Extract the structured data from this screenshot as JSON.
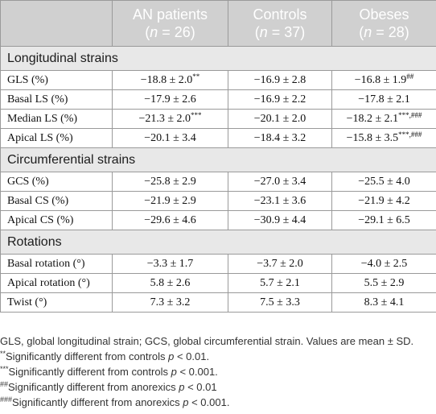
{
  "header": {
    "columns": [
      {
        "name": "AN patients",
        "n": "26"
      },
      {
        "name": "Controls",
        "n": "37"
      },
      {
        "name": "Obeses",
        "n": "28"
      }
    ],
    "n_prefix": "(",
    "n_var": "n",
    "n_eq": " = ",
    "n_suffix": ")"
  },
  "sections": [
    {
      "title": "Longitudinal strains",
      "rows": [
        {
          "label": "GLS (%)",
          "values": [
            {
              "v": "−18.8 ± 2.0",
              "sup": "**"
            },
            {
              "v": "−16.9 ± 2.8",
              "sup": ""
            },
            {
              "v": "−16.8 ± 1.9",
              "sup": "##"
            }
          ]
        },
        {
          "label": "Basal LS (%)",
          "values": [
            {
              "v": "−17.9 ± 2.6",
              "sup": ""
            },
            {
              "v": "−16.9 ± 2.2",
              "sup": ""
            },
            {
              "v": "−17.8 ± 2.1",
              "sup": ""
            }
          ]
        },
        {
          "label": "Median LS (%)",
          "values": [
            {
              "v": "−21.3 ± 2.0",
              "sup": "***"
            },
            {
              "v": "−20.1 ± 2.0",
              "sup": ""
            },
            {
              "v": "−18.2 ± 2.1",
              "sup": "***,###"
            }
          ]
        },
        {
          "label": "Apical LS (%)",
          "values": [
            {
              "v": "−20.1 ± 3.4",
              "sup": ""
            },
            {
              "v": "−18.4 ± 3.2",
              "sup": ""
            },
            {
              "v": "−15.8 ± 3.5",
              "sup": "***,###"
            }
          ]
        }
      ]
    },
    {
      "title": "Circumferential strains",
      "rows": [
        {
          "label": "GCS (%)",
          "values": [
            {
              "v": "−25.8 ± 2.9",
              "sup": ""
            },
            {
              "v": "−27.0 ± 3.4",
              "sup": ""
            },
            {
              "v": "−25.5 ± 4.0",
              "sup": ""
            }
          ]
        },
        {
          "label": "Basal CS (%)",
          "values": [
            {
              "v": "−21.9 ± 2.9",
              "sup": ""
            },
            {
              "v": "−23.1 ± 3.6",
              "sup": ""
            },
            {
              "v": "−21.9 ± 4.2",
              "sup": ""
            }
          ]
        },
        {
          "label": "Apical CS (%)",
          "values": [
            {
              "v": "−29.6 ± 4.6",
              "sup": ""
            },
            {
              "v": "−30.9 ± 4.4",
              "sup": ""
            },
            {
              "v": "−29.1 ± 6.5",
              "sup": ""
            }
          ]
        }
      ]
    },
    {
      "title": "Rotations",
      "rows": [
        {
          "label": "Basal rotation (°)",
          "values": [
            {
              "v": "−3.3 ± 1.7",
              "sup": ""
            },
            {
              "v": "−3.7 ± 2.0",
              "sup": ""
            },
            {
              "v": "−4.0 ± 2.5",
              "sup": ""
            }
          ]
        },
        {
          "label": "Apical rotation (°)",
          "values": [
            {
              "v": "5.8 ± 2.6",
              "sup": ""
            },
            {
              "v": "5.7 ± 2.1",
              "sup": ""
            },
            {
              "v": "5.5 ± 2.9",
              "sup": ""
            }
          ]
        },
        {
          "label": "Twist (°)",
          "values": [
            {
              "v": "7.3 ± 3.2",
              "sup": ""
            },
            {
              "v": "7.5 ± 3.3",
              "sup": ""
            },
            {
              "v": "8.3 ± 4.1",
              "sup": ""
            }
          ]
        }
      ]
    }
  ],
  "footnotes": {
    "abbreviations": "GLS, global longitudinal strain; GCS, global circumferential strain. Values are mean ± SD.",
    "notes": [
      {
        "mark": "**",
        "text": "Significantly different from controls ",
        "pvar": "p",
        "ptext": " < 0.01."
      },
      {
        "mark": "***",
        "text": "Significantly different from controls ",
        "pvar": "p",
        "ptext": " < 0.001."
      },
      {
        "mark": "##",
        "text": "Significantly different from anorexics ",
        "pvar": "p",
        "ptext": " < 0.01"
      },
      {
        "mark": "###",
        "text": "Significantly different from anorexics ",
        "pvar": "p",
        "ptext": " < 0.001."
      }
    ]
  }
}
